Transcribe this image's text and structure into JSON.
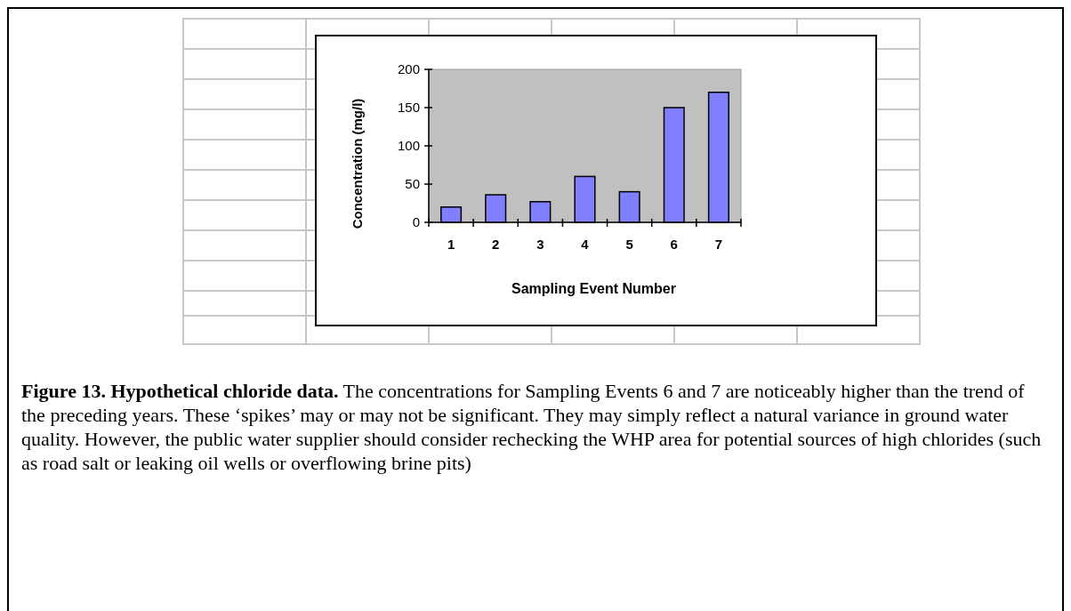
{
  "chart_data": {
    "type": "bar",
    "title": "Figure 13.  Hypothetical chloride data.",
    "xlabel": "Sampling Event Number",
    "ylabel": "Concentration (mg/l)",
    "categories": [
      "1",
      "2",
      "3",
      "4",
      "5",
      "6",
      "7"
    ],
    "values": [
      20,
      36,
      27,
      60,
      40,
      150,
      170
    ],
    "color": "#7f7fff",
    "ylim": [
      0,
      200
    ],
    "yticks": [
      0,
      50,
      100,
      150,
      200
    ],
    "annotations": [
      "The concentrations for Sampling Events 6 and 7 are noticeably higher than the trend of the preceding years.  These ‘spikes’ may or may not be significant.  They may simply reflect a natural variance in ground water quality.  However, the public water supplier should consider rechecking the WHP area for potential sources of high chlorides (such as road salt or leaking oil wells or overflowing brine pits)"
    ]
  }
}
